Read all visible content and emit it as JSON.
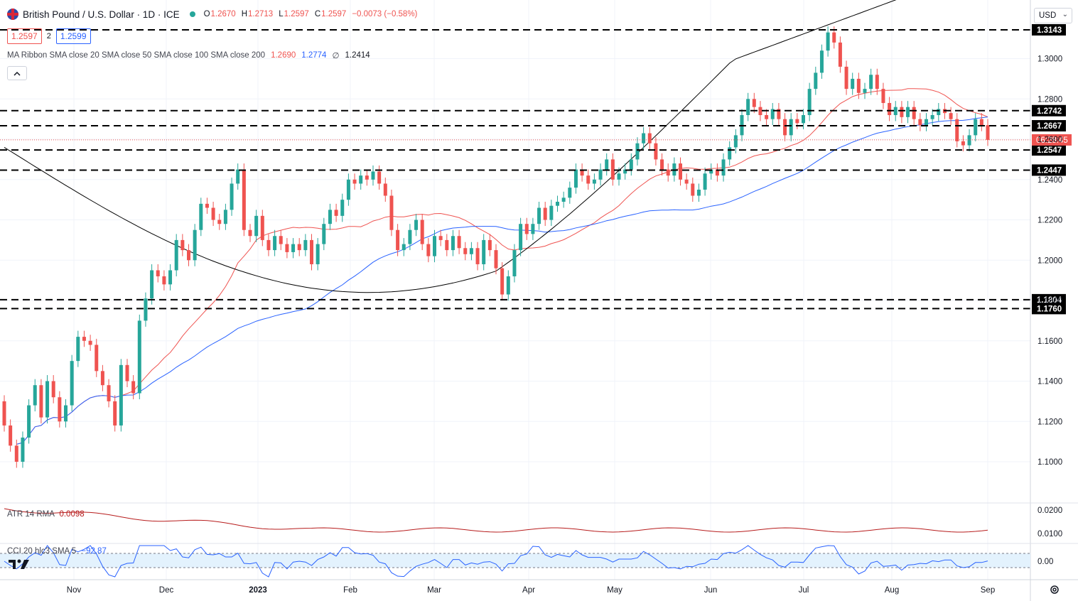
{
  "header": {
    "symbol_title": "British Pound / U.S. Dollar · 1D · ICE",
    "ohlc": [
      {
        "label": "O",
        "value": "1.2670"
      },
      {
        "label": "H",
        "value": "1.2713"
      },
      {
        "label": "L",
        "value": "1.2597"
      },
      {
        "label": "C",
        "value": "1.2597"
      }
    ],
    "change": "−0.0073 (−0.58%)",
    "sell_price": "1.2597",
    "spread": "2",
    "buy_price": "1.2599",
    "ma_label": "MA Ribbon SMA close 20 SMA close 50 SMA close 100 SMA close 200",
    "ma_values": [
      "1.2690",
      "1.2774",
      "∅",
      "1.2414"
    ],
    "currency": "USD",
    "collapse_icon": "chevron-up-icon"
  },
  "indicators": {
    "atr_label": "ATR 14 RMA",
    "atr_value": "0.0098",
    "cci_label": "CCI 20 hlc3 SMA 5",
    "cci_value": "−92.87"
  },
  "colors": {
    "up": "#26a69a",
    "down": "#ef5350",
    "sma20": "#ef5350",
    "sma50": "#2962ff",
    "sma200": "#000000",
    "cci": "#2962ff",
    "atr": "#b71c1c",
    "level_bg": "#000000",
    "price_bg": "#ef5350"
  },
  "chart_data": {
    "type": "candlestick",
    "title": "British Pound / U.S. Dollar · 1D · ICE",
    "ylim": [
      1.09,
      1.3165
    ],
    "price_ticks": [
      "1.1000",
      "1.1200",
      "1.1400",
      "1.1600",
      "1.1800",
      "1.2000",
      "1.2200",
      "1.2400",
      "1.2600",
      "1.2800",
      "1.3000"
    ],
    "x_labels": [
      "Nov",
      "Dec",
      "2023",
      "Feb",
      "Mar",
      "Apr",
      "May",
      "Jun",
      "Jul",
      "Aug",
      "Sep"
    ],
    "horizontal_levels": [
      "1.3143",
      "1.2742",
      "1.2667",
      "1.2547",
      "1.2447",
      "1.1804",
      "1.1760"
    ],
    "current_price_label": "06:28:45",
    "last_price": 1.2597,
    "candles_approx": [
      [
        1.13,
        1.118
      ],
      [
        1.118,
        1.108
      ],
      [
        1.108,
        1.1
      ],
      [
        1.1,
        1.112
      ],
      [
        1.112,
        1.128
      ],
      [
        1.128,
        1.138
      ],
      [
        1.138,
        1.122
      ],
      [
        1.122,
        1.14
      ],
      [
        1.14,
        1.132
      ],
      [
        1.132,
        1.12
      ],
      [
        1.12,
        1.128
      ],
      [
        1.128,
        1.15
      ],
      [
        1.15,
        1.162
      ],
      [
        1.162,
        1.16
      ],
      [
        1.16,
        1.158
      ],
      [
        1.158,
        1.145
      ],
      [
        1.145,
        1.138
      ],
      [
        1.138,
        1.13
      ],
      [
        1.13,
        1.118
      ],
      [
        1.118,
        1.148
      ],
      [
        1.148,
        1.14
      ],
      [
        1.14,
        1.134
      ],
      [
        1.134,
        1.17
      ],
      [
        1.17,
        1.181
      ],
      [
        1.181,
        1.195
      ],
      [
        1.195,
        1.192
      ],
      [
        1.192,
        1.188
      ],
      [
        1.188,
        1.195
      ],
      [
        1.195,
        1.21
      ],
      [
        1.21,
        1.205
      ],
      [
        1.205,
        1.2
      ],
      [
        1.2,
        1.215
      ],
      [
        1.215,
        1.228
      ],
      [
        1.228,
        1.226
      ],
      [
        1.226,
        1.22
      ],
      [
        1.22,
        1.218
      ],
      [
        1.218,
        1.225
      ],
      [
        1.225,
        1.238
      ],
      [
        1.238,
        1.245
      ],
      [
        1.245,
        1.215
      ],
      [
        1.215,
        1.212
      ],
      [
        1.212,
        1.222
      ],
      [
        1.222,
        1.21
      ],
      [
        1.21,
        1.205
      ],
      [
        1.205,
        1.212
      ],
      [
        1.212,
        1.208
      ],
      [
        1.208,
        1.204
      ],
      [
        1.204,
        1.208
      ],
      [
        1.208,
        1.205
      ],
      [
        1.205,
        1.21
      ],
      [
        1.21,
        1.198
      ],
      [
        1.198,
        1.208
      ],
      [
        1.208,
        1.218
      ],
      [
        1.218,
        1.225
      ],
      [
        1.225,
        1.222
      ],
      [
        1.222,
        1.23
      ],
      [
        1.23,
        1.24
      ],
      [
        1.24,
        1.238
      ],
      [
        1.238,
        1.242
      ],
      [
        1.242,
        1.24
      ],
      [
        1.24,
        1.244
      ],
      [
        1.244,
        1.238
      ],
      [
        1.238,
        1.232
      ],
      [
        1.232,
        1.215
      ],
      [
        1.215,
        1.205
      ],
      [
        1.205,
        1.208
      ],
      [
        1.208,
        1.215
      ],
      [
        1.215,
        1.22
      ],
      [
        1.22,
        1.208
      ],
      [
        1.208,
        1.202
      ],
      [
        1.202,
        1.212
      ],
      [
        1.212,
        1.21
      ],
      [
        1.21,
        1.205
      ],
      [
        1.205,
        1.212
      ],
      [
        1.212,
        1.206
      ],
      [
        1.206,
        1.203
      ],
      [
        1.203,
        1.206
      ],
      [
        1.206,
        1.198
      ],
      [
        1.198,
        1.21
      ],
      [
        1.21,
        1.205
      ],
      [
        1.205,
        1.196
      ],
      [
        1.196,
        1.183
      ],
      [
        1.183,
        1.192
      ],
      [
        1.192,
        1.205
      ],
      [
        1.205,
        1.218
      ],
      [
        1.218,
        1.213
      ],
      [
        1.213,
        1.218
      ],
      [
        1.218,
        1.226
      ],
      [
        1.226,
        1.22
      ],
      [
        1.22,
        1.227
      ],
      [
        1.227,
        1.229
      ],
      [
        1.229,
        1.231
      ],
      [
        1.231,
        1.236
      ],
      [
        1.236,
        1.245
      ],
      [
        1.245,
        1.242
      ],
      [
        1.242,
        1.238
      ],
      [
        1.238,
        1.24
      ],
      [
        1.24,
        1.245
      ],
      [
        1.245,
        1.25
      ],
      [
        1.25,
        1.24
      ],
      [
        1.24,
        1.243
      ],
      [
        1.243,
        1.245
      ],
      [
        1.245,
        1.25
      ],
      [
        1.25,
        1.258
      ],
      [
        1.258,
        1.263
      ],
      [
        1.263,
        1.258
      ],
      [
        1.258,
        1.25
      ],
      [
        1.25,
        1.245
      ],
      [
        1.245,
        1.242
      ],
      [
        1.242,
        1.248
      ],
      [
        1.248,
        1.24
      ],
      [
        1.24,
        1.238
      ],
      [
        1.238,
        1.232
      ],
      [
        1.232,
        1.235
      ],
      [
        1.235,
        1.243
      ],
      [
        1.243,
        1.245
      ],
      [
        1.245,
        1.242
      ],
      [
        1.242,
        1.25
      ],
      [
        1.25,
        1.256
      ],
      [
        1.256,
        1.262
      ],
      [
        1.262,
        1.272
      ],
      [
        1.272,
        1.28
      ],
      [
        1.28,
        1.276
      ],
      [
        1.276,
        1.272
      ],
      [
        1.272,
        1.27
      ],
      [
        1.27,
        1.275
      ],
      [
        1.275,
        1.27
      ],
      [
        1.27,
        1.262
      ],
      [
        1.262,
        1.27
      ],
      [
        1.27,
        1.268
      ],
      [
        1.268,
        1.272
      ],
      [
        1.272,
        1.285
      ],
      [
        1.285,
        1.293
      ],
      [
        1.293,
        1.304
      ],
      [
        1.304,
        1.313
      ],
      [
        1.313,
        1.308
      ],
      [
        1.308,
        1.296
      ],
      [
        1.296,
        1.285
      ],
      [
        1.285,
        1.29
      ],
      [
        1.29,
        1.283
      ],
      [
        1.283,
        1.285
      ],
      [
        1.285,
        1.292
      ],
      [
        1.292,
        1.285
      ],
      [
        1.285,
        1.278
      ],
      [
        1.278,
        1.272
      ],
      [
        1.272,
        1.276
      ],
      [
        1.276,
        1.271
      ],
      [
        1.271,
        1.276
      ],
      [
        1.276,
        1.27
      ],
      [
        1.27,
        1.267
      ],
      [
        1.267,
        1.27
      ],
      [
        1.27,
        1.272
      ],
      [
        1.272,
        1.275
      ],
      [
        1.275,
        1.273
      ],
      [
        1.273,
        1.27
      ],
      [
        1.27,
        1.259
      ],
      [
        1.259,
        1.257
      ],
      [
        1.257,
        1.262
      ],
      [
        1.262,
        1.27
      ],
      [
        1.27,
        1.267
      ],
      [
        1.267,
        1.2597
      ]
    ]
  }
}
